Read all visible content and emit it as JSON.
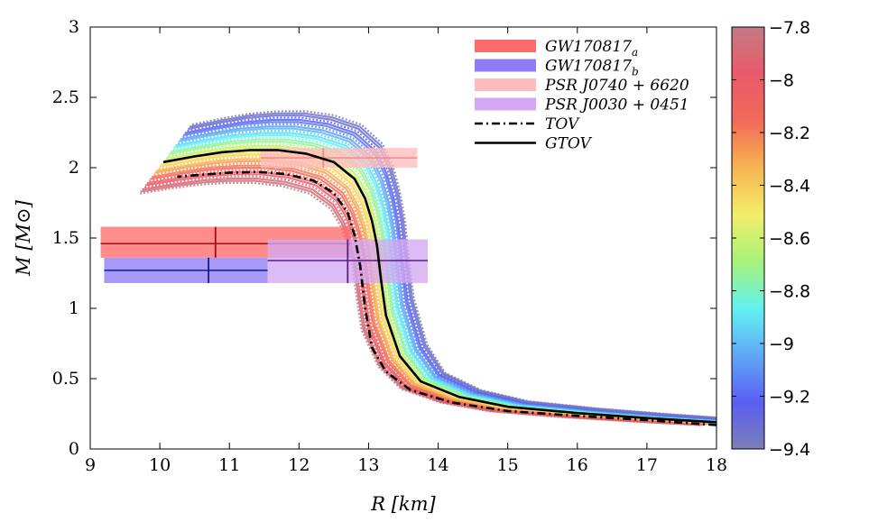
{
  "chart_data": {
    "type": "line",
    "title": "",
    "xlabel": "R [km]",
    "ylabel": "M [M⊙]",
    "xlim": [
      9,
      18
    ],
    "ylim": [
      0,
      3
    ],
    "xticks": [
      "9",
      "10",
      "11",
      "12",
      "13",
      "14",
      "15",
      "16",
      "17",
      "18"
    ],
    "yticks": [
      "0",
      "0.5",
      "1",
      "1.5",
      "2",
      "2.5",
      "3"
    ],
    "grid": false,
    "legend_position": "top-right",
    "legend": [
      {
        "label": "GW170817",
        "sub": "a",
        "color": "#ff6a6a",
        "style": "band"
      },
      {
        "label": "GW170817",
        "sub": "b",
        "color": "#8f7cf5",
        "style": "band"
      },
      {
        "label": "PSR J0740 + 6620",
        "sub": "",
        "color": "#ffbcbc",
        "style": "band"
      },
      {
        "label": "PSR J0030 + 0451",
        "sub": "",
        "color": "#d3a8f2",
        "style": "band"
      },
      {
        "label": "TOV",
        "sub": "",
        "color": "#000000",
        "style": "dashdot"
      },
      {
        "label": "GTOV",
        "sub": "",
        "color": "#000000",
        "style": "solid"
      }
    ],
    "constraints": [
      {
        "name": "GW170817_a",
        "r_range": [
          9.15,
          12.75
        ],
        "m_range": [
          1.36,
          1.58
        ],
        "r_center": 10.8,
        "m_center": 1.46,
        "color": "#ff6a6a",
        "mark": "#a01010"
      },
      {
        "name": "GW170817_b",
        "r_range": [
          9.2,
          11.55
        ],
        "m_range": [
          1.18,
          1.36
        ],
        "r_center": 10.7,
        "m_center": 1.27,
        "color": "#8f7cf5",
        "mark": "#1a1a8c"
      },
      {
        "name": "PSR J0740+6620",
        "r_range": [
          11.45,
          13.7
        ],
        "m_range": [
          2.0,
          2.14
        ],
        "r_center": 12.35,
        "m_center": 2.07,
        "color": "#ffbcbc",
        "mark": "#f08a8a"
      },
      {
        "name": "PSR J0030+0451",
        "r_range": [
          11.55,
          13.85
        ],
        "m_range": [
          1.18,
          1.49
        ],
        "r_center": 12.7,
        "m_center": 1.34,
        "color": "#d3a8f2",
        "mark": "#5a2080"
      }
    ],
    "series": [
      {
        "name": "TOV",
        "style": "dashdot",
        "r": [
          18.0,
          17.0,
          16.0,
          15.0,
          14.2,
          13.6,
          13.25,
          13.05,
          12.95,
          12.88,
          12.8,
          12.7,
          12.5,
          12.2,
          11.8,
          11.4,
          11.0,
          10.6,
          10.25
        ],
        "m": [
          0.17,
          0.205,
          0.235,
          0.27,
          0.33,
          0.42,
          0.55,
          0.72,
          1.0,
          1.3,
          1.52,
          1.68,
          1.82,
          1.91,
          1.955,
          1.97,
          1.965,
          1.95,
          1.935
        ]
      },
      {
        "name": "GTOV",
        "style": "solid",
        "r": [
          18.0,
          17.0,
          16.0,
          15.0,
          14.3,
          13.75,
          13.45,
          13.25,
          13.18,
          13.12,
          13.05,
          12.95,
          12.8,
          12.5,
          12.1,
          11.7,
          11.3,
          10.9,
          10.5,
          10.05
        ],
        "m": [
          0.19,
          0.22,
          0.255,
          0.3,
          0.37,
          0.48,
          0.66,
          0.95,
          1.2,
          1.45,
          1.62,
          1.78,
          1.92,
          2.04,
          2.1,
          2.125,
          2.125,
          2.11,
          2.08,
          2.04
        ]
      }
    ],
    "colorbar": {
      "min": -9.4,
      "max": -7.8,
      "ticks": [
        "−7.8",
        "−8",
        "−8.2",
        "−8.4",
        "−8.6",
        "−8.8",
        "−9",
        "−9.2",
        "−9.4"
      ],
      "tick_values": [
        -7.8,
        -8.0,
        -8.2,
        -8.4,
        -8.6,
        -8.8,
        -9.0,
        -9.2,
        -9.4
      ],
      "colors": [
        "#7b7fb7",
        "#5a5ef2",
        "#5fa8f5",
        "#63f2f2",
        "#a8f27a",
        "#f2ee6a",
        "#f7b451",
        "#f26a5a",
        "#e85a6a",
        "#c47a84"
      ]
    }
  }
}
